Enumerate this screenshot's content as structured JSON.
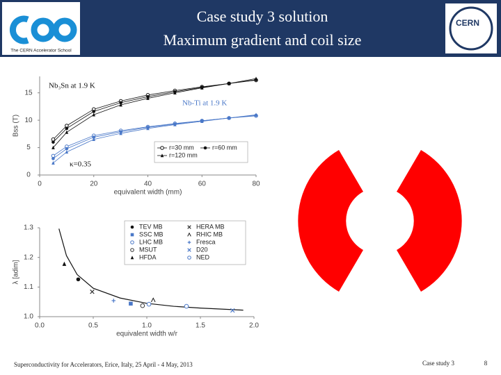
{
  "header": {
    "title": "Case study 3 solution",
    "subtitle": "Maximum gradient and coil size",
    "logo_left": "The CERN Accelerator School",
    "logo_right": "CERN"
  },
  "footer": {
    "left": "Superconductivity for Accelerators, Erice, Italy, 25 April - 4 May, 2013",
    "center": "Case study 3",
    "page": "8"
  },
  "chart_data": [
    {
      "type": "line",
      "x_label": "equivalent width (mm)",
      "y_label": "Bss (T)",
      "annotations": [
        "Nb₃Sn at 1.9 K",
        "Nb-Ti at 1.9 K",
        "κ=0.35"
      ],
      "x": [
        5,
        10,
        20,
        30,
        40,
        50,
        60,
        70,
        80
      ],
      "xlim": [
        0,
        80
      ],
      "xticks": [
        0,
        20,
        40,
        60,
        80
      ],
      "ylim": [
        0,
        18
      ],
      "yticks": [
        0,
        5,
        10,
        15
      ],
      "legend": "lower right",
      "grid": false,
      "series": [
        {
          "name": "r=30 mm",
          "color": "#111111",
          "marker": "open-circle",
          "values": [
            6.5,
            9.0,
            12.0,
            13.5,
            14.6,
            15.4,
            16.1,
            16.7,
            17.3
          ]
        },
        {
          "name": "r=60 mm",
          "color": "#111111",
          "marker": "circle",
          "values": [
            6.0,
            8.5,
            11.6,
            13.2,
            14.3,
            15.2,
            16.0,
            16.7,
            17.4
          ]
        },
        {
          "name": "r=120 mm",
          "color": "#111111",
          "marker": "triangle",
          "values": [
            5.0,
            7.8,
            11.0,
            12.8,
            14.0,
            15.0,
            15.9,
            16.7,
            17.6
          ]
        },
        {
          "name": "r=30 mm",
          "color": "#4a78c8",
          "marker": "open-circle",
          "values": [
            3.5,
            5.2,
            7.2,
            8.1,
            8.8,
            9.4,
            9.9,
            10.4,
            10.8
          ]
        },
        {
          "name": "r=60 mm",
          "color": "#4a78c8",
          "marker": "circle",
          "values": [
            3.0,
            4.8,
            6.9,
            7.9,
            8.7,
            9.3,
            9.9,
            10.4,
            10.9
          ]
        },
        {
          "name": "r=120 mm",
          "color": "#4a78c8",
          "marker": "triangle",
          "values": [
            2.2,
            4.2,
            6.5,
            7.6,
            8.5,
            9.2,
            9.8,
            10.4,
            11.0
          ]
        }
      ]
    },
    {
      "type": "scatter",
      "x_label": "equivalent width w/r",
      "y_label": "λ [adim]",
      "xlim": [
        0,
        2
      ],
      "xticks": [
        {
          "value": 0,
          "label": "0.0"
        },
        0.5,
        {
          "value": 1,
          "label": "1.0"
        },
        1.5,
        {
          "value": 2,
          "label": "2.0"
        }
      ],
      "ylim": [
        1,
        1.3
      ],
      "yticks": [
        {
          "value": 1,
          "label": "1.0"
        },
        1.1,
        1.2,
        {
          "value": 1.3,
          "label": "1.3"
        }
      ],
      "legend": "upper right",
      "grid": false,
      "curve": {
        "color": "#111111",
        "x": [
          0.18,
          0.25,
          0.35,
          0.5,
          0.75,
          1.0,
          1.25,
          1.5,
          1.9
        ],
        "values": [
          1.297,
          1.206,
          1.142,
          1.096,
          1.063,
          1.045,
          1.035,
          1.029,
          1.022
        ]
      },
      "series": [
        {
          "name": "TEV MB",
          "color": "#111111",
          "marker": "circle",
          "x": [
            0.36
          ],
          "values": [
            1.126
          ]
        },
        {
          "name": "HERA MB",
          "color": "#333333",
          "marker": "x",
          "x": [
            0.49
          ],
          "values": [
            1.084
          ]
        },
        {
          "name": "SSC MB",
          "color": "#4a78c8",
          "marker": "square",
          "x": [
            0.85
          ],
          "values": [
            1.044
          ]
        },
        {
          "name": "RHIC MB",
          "color": "#111111",
          "marker": "caret",
          "x": [
            1.06
          ],
          "values": [
            1.056
          ]
        },
        {
          "name": "LHC MB",
          "color": "#4a78c8",
          "marker": "open-circle",
          "x": [
            1.02
          ],
          "values": [
            1.042
          ]
        },
        {
          "name": "Fresca",
          "color": "#4a78c8",
          "marker": "plus",
          "x": [
            0.69
          ],
          "values": [
            1.054
          ]
        },
        {
          "name": "MSUT",
          "color": "#333333",
          "marker": "open-circle",
          "x": [
            0.96
          ],
          "values": [
            1.037
          ]
        },
        {
          "name": "D20",
          "color": "#4a78c8",
          "marker": "x",
          "x": [
            1.8
          ],
          "values": [
            1.021
          ]
        },
        {
          "name": "HFDA",
          "color": "#111111",
          "marker": "triangle",
          "x": [
            0.23
          ],
          "values": [
            1.178
          ]
        },
        {
          "name": "NED",
          "color": "#4a78c8",
          "marker": "open-circle",
          "x": [
            1.37
          ],
          "values": [
            1.035
          ]
        }
      ]
    }
  ]
}
